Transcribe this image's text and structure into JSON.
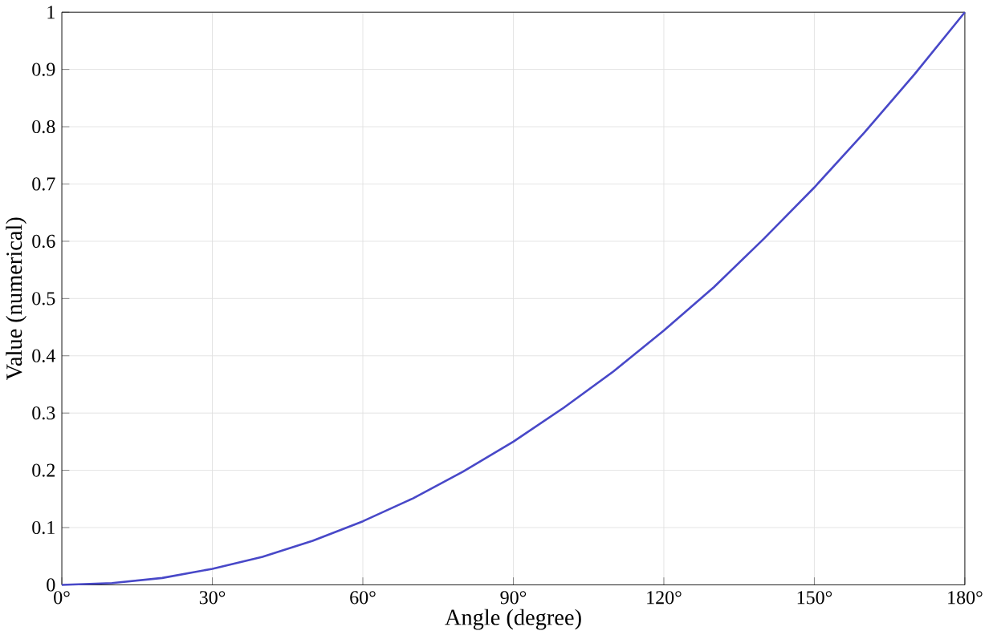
{
  "chart_data": {
    "type": "line",
    "xlabel": "Angle (degree)",
    "ylabel": "Value (numerical)",
    "x": [
      0,
      10,
      20,
      30,
      40,
      50,
      60,
      70,
      80,
      90,
      100,
      110,
      120,
      130,
      140,
      150,
      160,
      170,
      180
    ],
    "values": [
      0,
      0.003,
      0.012,
      0.028,
      0.049,
      0.077,
      0.111,
      0.151,
      0.198,
      0.25,
      0.309,
      0.373,
      0.444,
      0.52,
      0.605,
      0.694,
      0.79,
      0.892,
      1
    ],
    "color": "#4848c8",
    "xlim": [
      0,
      180
    ],
    "ylim": [
      0,
      1
    ],
    "xticks": [
      {
        "value": 0,
        "label": "0°"
      },
      {
        "value": 30,
        "label": "30°"
      },
      {
        "value": 60,
        "label": "60°"
      },
      {
        "value": 90,
        "label": "90°"
      },
      {
        "value": 120,
        "label": "120°"
      },
      {
        "value": 150,
        "label": "150°"
      },
      {
        "value": 180,
        "label": "180°"
      }
    ],
    "yticks": [
      0,
      0.1,
      0.2,
      0.3,
      0.4,
      0.5,
      0.6,
      0.7,
      0.8,
      0.9,
      1
    ],
    "grid": true,
    "marker": "none",
    "line_style": "solid"
  }
}
